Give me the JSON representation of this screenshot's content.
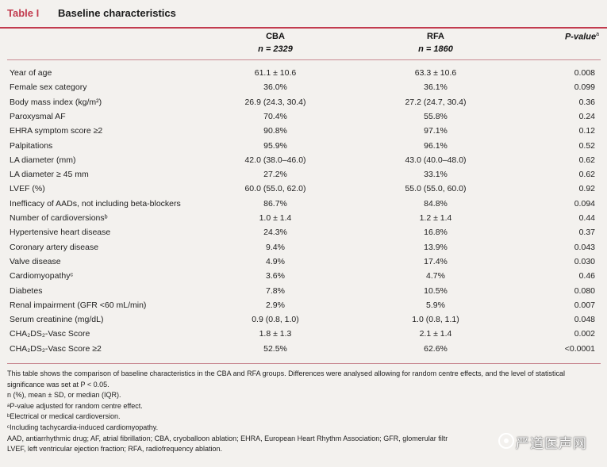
{
  "table_label": "Table I",
  "table_title": "Baseline characteristics",
  "columns": {
    "cba": "CBA",
    "cba_n": "n = 2329",
    "rfa": "RFA",
    "rfa_n": "n = 1860",
    "pvalue": "P-value",
    "pvalue_sup": "a"
  },
  "rows": [
    {
      "label": "Year of age",
      "cba": "61.1 ± 10.6",
      "rfa": "63.3 ± 10.6",
      "p": "0.008"
    },
    {
      "label": "Female sex category",
      "cba": "36.0%",
      "rfa": "36.1%",
      "p": "0.099"
    },
    {
      "label": "Body mass index (kg/m²)",
      "cba": "26.9 (24.3, 30.4)",
      "rfa": "27.2 (24.7, 30.4)",
      "p": "0.36"
    },
    {
      "label": "Paroxysmal AF",
      "cba": "70.4%",
      "rfa": "55.8%",
      "p": "0.24"
    },
    {
      "label": "EHRA symptom score ≥2",
      "cba": "90.8%",
      "rfa": "97.1%",
      "p": "0.12"
    },
    {
      "label": "Palpitations",
      "cba": "95.9%",
      "rfa": "96.1%",
      "p": "0.52"
    },
    {
      "label": "LA diameter (mm)",
      "cba": "42.0 (38.0–46.0)",
      "rfa": "43.0 (40.0–48.0)",
      "p": "0.62"
    },
    {
      "label": "LA diameter ≥ 45 mm",
      "cba": "27.2%",
      "rfa": "33.1%",
      "p": "0.62"
    },
    {
      "label": "LVEF (%)",
      "cba": "60.0 (55.0, 62.0)",
      "rfa": "55.0 (55.0, 60.0)",
      "p": "0.92"
    },
    {
      "label": "Inefficacy of AADs, not including beta-blockers",
      "cba": "86.7%",
      "rfa": "84.8%",
      "p": "0.094"
    },
    {
      "label": "Number of cardioversionsᵇ",
      "cba": "1.0 ± 1.4",
      "rfa": "1.2 ± 1.4",
      "p": "0.44"
    },
    {
      "label": "Hypertensive heart disease",
      "cba": "24.3%",
      "rfa": "16.8%",
      "p": "0.37"
    },
    {
      "label": "Coronary artery disease",
      "cba": "9.4%",
      "rfa": "13.9%",
      "p": "0.043"
    },
    {
      "label": "Valve disease",
      "cba": "4.9%",
      "rfa": "17.4%",
      "p": "0.030"
    },
    {
      "label": "Cardiomyopathyᶜ",
      "cba": "3.6%",
      "rfa": "4.7%",
      "p": "0.46"
    },
    {
      "label": "Diabetes",
      "cba": "7.8%",
      "rfa": "10.5%",
      "p": "0.080"
    },
    {
      "label": "Renal impairment (GFR <60 mL/min)",
      "cba": "2.9%",
      "rfa": "5.9%",
      "p": "0.007"
    },
    {
      "label": "Serum creatinine (mg/dL)",
      "cba": "0.9 (0.8, 1.0)",
      "rfa": "1.0 (0.8, 1.1)",
      "p": "0.048"
    },
    {
      "label": "CHA₂DS₂-Vasc Score",
      "cba": "1.8 ± 1.3",
      "rfa": "2.1 ± 1.4",
      "p": "0.002"
    },
    {
      "label": "CHA₂DS₂-Vasc Score ≥2",
      "cba": "52.5%",
      "rfa": "62.6%",
      "p": "<0.0001"
    }
  ],
  "footnotes": [
    "This table shows the comparison of baseline characteristics in the CBA and RFA groups. Differences were analysed allowing for random centre effects, and the level of statistical",
    "significance was set at P < 0.05.",
    "n (%), mean ± SD, or median (IQR).",
    "ᵃP-value adjusted for random centre effect.",
    "ᵇElectrical or medical cardioversion.",
    "ᶜIncluding tachycardia-induced cardiomyopathy.",
    "AAD, antiarrhythmic drug; AF, atrial fibrillation; CBA, cryoballoon ablation; EHRA, European Heart Rhythm Association; GFR, glomerular filtr",
    "LVEF, left ventricular ejection fraction; RFA, radiofrequency ablation."
  ],
  "watermark": "严道医声网",
  "colors": {
    "accent": "#c23b4e",
    "rule": "#c98a92",
    "background": "#f3f1ee"
  }
}
